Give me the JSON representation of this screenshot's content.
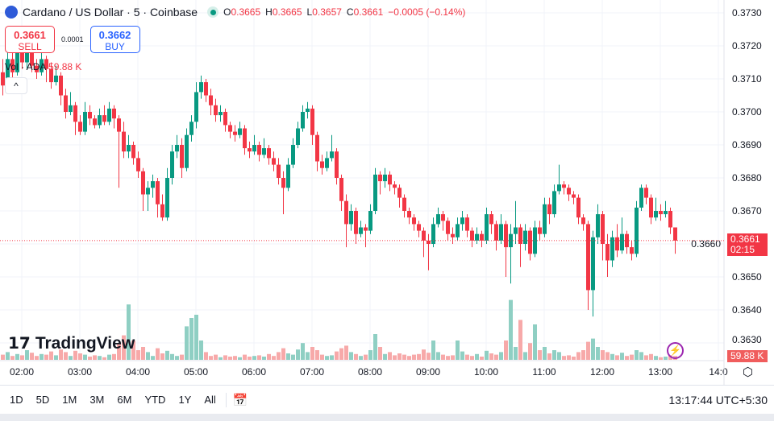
{
  "header": {
    "title": "Cardano / US Dollar · 5 · Coinbase",
    "o_label": "O",
    "o": "0.3665",
    "h_label": "H",
    "h": "0.3665",
    "l_label": "L",
    "l": "0.3657",
    "c_label": "C",
    "c": "0.3661",
    "change": "−0.0005 (−0.14%)"
  },
  "trade": {
    "sell_price": "0.3661",
    "sell_label": "SELL",
    "spread": "0.0001",
    "buy_price": "0.3662",
    "buy_label": "BUY"
  },
  "volume": {
    "label": "Vol · ADA",
    "value": "59.88 K"
  },
  "brand": "TradingView",
  "price_tag": {
    "price": "0.3661",
    "countdown": "02:15"
  },
  "volume_tag": "59.88 K",
  "colors": {
    "up": "#089981",
    "down": "#f23645",
    "accent": "#2962ff"
  },
  "ranges": [
    "1D",
    "5D",
    "1M",
    "3M",
    "6M",
    "YTD",
    "1Y",
    "All"
  ],
  "clock": "13:17:44 UTC+5:30",
  "chart_data": {
    "type": "candlestick",
    "interval": "5",
    "y_ticks": [
      "0.3730",
      "0.3720",
      "0.3710",
      "0.3700",
      "0.3690",
      "0.3680",
      "0.3670",
      "0.3660",
      "0.3650",
      "0.3640",
      "0.3630"
    ],
    "ylim": [
      0.363,
      0.373
    ],
    "x_ticks": [
      "02:00",
      "03:00",
      "04:00",
      "05:00",
      "06:00",
      "07:00",
      "08:00",
      "09:00",
      "10:00",
      "11:00",
      "12:00",
      "13:00",
      "14:0"
    ],
    "current_price": 0.3661,
    "candles": [
      [
        0.3712,
        0.3716,
        0.3705,
        0.3708,
        80
      ],
      [
        0.3708,
        0.3719,
        0.3706,
        0.3716,
        120
      ],
      [
        0.3716,
        0.3718,
        0.371,
        0.3712,
        60
      ],
      [
        0.3712,
        0.3721,
        0.3711,
        0.3718,
        90
      ],
      [
        0.3718,
        0.372,
        0.3713,
        0.3715,
        70
      ],
      [
        0.3715,
        0.3722,
        0.3713,
        0.3719,
        150
      ],
      [
        0.3719,
        0.372,
        0.3712,
        0.3714,
        110
      ],
      [
        0.3714,
        0.3716,
        0.371,
        0.3712,
        60
      ],
      [
        0.3712,
        0.3718,
        0.3711,
        0.3716,
        90
      ],
      [
        0.3716,
        0.3717,
        0.3709,
        0.3713,
        80
      ],
      [
        0.3713,
        0.3715,
        0.3707,
        0.3709,
        130
      ],
      [
        0.3709,
        0.3714,
        0.3708,
        0.3711,
        70
      ],
      [
        0.3711,
        0.3712,
        0.3702,
        0.3705,
        160
      ],
      [
        0.3705,
        0.3707,
        0.3698,
        0.37,
        120
      ],
      [
        0.37,
        0.3706,
        0.3699,
        0.3702,
        60
      ],
      [
        0.3702,
        0.3703,
        0.3693,
        0.3697,
        140
      ],
      [
        0.3697,
        0.3699,
        0.3693,
        0.3694,
        100
      ],
      [
        0.3694,
        0.3703,
        0.3693,
        0.37,
        80
      ],
      [
        0.37,
        0.3702,
        0.3696,
        0.3698,
        50
      ],
      [
        0.3698,
        0.3699,
        0.3695,
        0.3696,
        70
      ],
      [
        0.3696,
        0.3701,
        0.3695,
        0.3699,
        60
      ],
      [
        0.3699,
        0.3702,
        0.3696,
        0.3697,
        40
      ],
      [
        0.3697,
        0.3703,
        0.3696,
        0.3701,
        80
      ],
      [
        0.3701,
        0.3702,
        0.3695,
        0.3698,
        90
      ],
      [
        0.3698,
        0.3699,
        0.3677,
        0.3694,
        260
      ],
      [
        0.3694,
        0.3697,
        0.3686,
        0.3688,
        380
      ],
      [
        0.3688,
        0.3693,
        0.3686,
        0.369,
        860
      ],
      [
        0.369,
        0.3691,
        0.3684,
        0.3686,
        300
      ],
      [
        0.3686,
        0.3688,
        0.368,
        0.3682,
        150
      ],
      [
        0.3682,
        0.3683,
        0.367,
        0.3675,
        200
      ],
      [
        0.3675,
        0.3679,
        0.367,
        0.3677,
        120
      ],
      [
        0.3677,
        0.3681,
        0.3674,
        0.3679,
        60
      ],
      [
        0.3679,
        0.368,
        0.3668,
        0.3672,
        180
      ],
      [
        0.3672,
        0.3675,
        0.3667,
        0.3668,
        100
      ],
      [
        0.3668,
        0.3683,
        0.3667,
        0.368,
        140
      ],
      [
        0.368,
        0.369,
        0.3678,
        0.3688,
        90
      ],
      [
        0.3688,
        0.3693,
        0.3686,
        0.369,
        60
      ],
      [
        0.369,
        0.3692,
        0.368,
        0.3683,
        80
      ],
      [
        0.3683,
        0.3695,
        0.3682,
        0.3693,
        520
      ],
      [
        0.3693,
        0.3699,
        0.3691,
        0.3697,
        650
      ],
      [
        0.3697,
        0.3709,
        0.3695,
        0.3706,
        700
      ],
      [
        0.3706,
        0.3711,
        0.3704,
        0.3709,
        300
      ],
      [
        0.3709,
        0.371,
        0.3703,
        0.3705,
        120
      ],
      [
        0.3705,
        0.3707,
        0.3699,
        0.3702,
        60
      ],
      [
        0.3702,
        0.3704,
        0.3697,
        0.3699,
        80
      ],
      [
        0.3699,
        0.3702,
        0.3697,
        0.37,
        40
      ],
      [
        0.37,
        0.3701,
        0.3694,
        0.3696,
        70
      ],
      [
        0.3696,
        0.3697,
        0.3692,
        0.3694,
        50
      ],
      [
        0.3694,
        0.3696,
        0.3691,
        0.3693,
        60
      ],
      [
        0.3693,
        0.3697,
        0.3692,
        0.3695,
        40
      ],
      [
        0.3695,
        0.3696,
        0.3687,
        0.3689,
        80
      ],
      [
        0.3689,
        0.3691,
        0.3686,
        0.3688,
        50
      ],
      [
        0.3688,
        0.3693,
        0.3687,
        0.369,
        60
      ],
      [
        0.369,
        0.3691,
        0.3685,
        0.3687,
        70
      ],
      [
        0.3687,
        0.3692,
        0.3686,
        0.3689,
        50
      ],
      [
        0.3689,
        0.369,
        0.3684,
        0.3686,
        90
      ],
      [
        0.3686,
        0.3688,
        0.3682,
        0.3684,
        60
      ],
      [
        0.3684,
        0.3686,
        0.3678,
        0.368,
        120
      ],
      [
        0.368,
        0.3682,
        0.3669,
        0.3677,
        180
      ],
      [
        0.3677,
        0.3686,
        0.3676,
        0.3684,
        100
      ],
      [
        0.3684,
        0.3692,
        0.3683,
        0.369,
        80
      ],
      [
        0.369,
        0.3697,
        0.3689,
        0.3695,
        160
      ],
      [
        0.3695,
        0.3702,
        0.3694,
        0.37,
        260
      ],
      [
        0.37,
        0.3703,
        0.3698,
        0.3701,
        120
      ],
      [
        0.3701,
        0.3702,
        0.369,
        0.3693,
        200
      ],
      [
        0.3693,
        0.3694,
        0.3682,
        0.3685,
        150
      ],
      [
        0.3685,
        0.3687,
        0.3681,
        0.3683,
        80
      ],
      [
        0.3683,
        0.3688,
        0.3682,
        0.3686,
        60
      ],
      [
        0.3686,
        0.3693,
        0.3685,
        0.3688,
        70
      ],
      [
        0.3688,
        0.3689,
        0.3678,
        0.368,
        130
      ],
      [
        0.368,
        0.3681,
        0.367,
        0.3673,
        180
      ],
      [
        0.3673,
        0.3675,
        0.3659,
        0.3666,
        220
      ],
      [
        0.3666,
        0.3672,
        0.3664,
        0.367,
        120
      ],
      [
        0.367,
        0.3671,
        0.366,
        0.3663,
        90
      ],
      [
        0.3663,
        0.3667,
        0.3662,
        0.3665,
        60
      ],
      [
        0.3665,
        0.3666,
        0.3659,
        0.3664,
        80
      ],
      [
        0.3664,
        0.3672,
        0.3663,
        0.367,
        150
      ],
      [
        0.367,
        0.3683,
        0.3669,
        0.3681,
        400
      ],
      [
        0.3681,
        0.3682,
        0.3675,
        0.3679,
        200
      ],
      [
        0.3679,
        0.3683,
        0.3677,
        0.3681,
        90
      ],
      [
        0.3681,
        0.3682,
        0.3676,
        0.3678,
        120
      ],
      [
        0.3678,
        0.3679,
        0.3675,
        0.3677,
        70
      ],
      [
        0.3677,
        0.3678,
        0.3671,
        0.3674,
        100
      ],
      [
        0.3674,
        0.3675,
        0.3668,
        0.367,
        80
      ],
      [
        0.367,
        0.3671,
        0.3666,
        0.3668,
        60
      ],
      [
        0.3668,
        0.3669,
        0.3664,
        0.3666,
        80
      ],
      [
        0.3666,
        0.3667,
        0.3662,
        0.3664,
        90
      ],
      [
        0.3664,
        0.3665,
        0.3656,
        0.3661,
        160
      ],
      [
        0.3661,
        0.3663,
        0.3652,
        0.366,
        110
      ],
      [
        0.366,
        0.3668,
        0.3659,
        0.3666,
        300
      ],
      [
        0.3666,
        0.3671,
        0.3665,
        0.3669,
        120
      ],
      [
        0.3669,
        0.367,
        0.3664,
        0.3667,
        80
      ],
      [
        0.3667,
        0.3668,
        0.3661,
        0.3663,
        60
      ],
      [
        0.3663,
        0.3665,
        0.366,
        0.3662,
        70
      ],
      [
        0.3662,
        0.3668,
        0.3661,
        0.3666,
        300
      ],
      [
        0.3666,
        0.367,
        0.3664,
        0.3668,
        130
      ],
      [
        0.3668,
        0.3669,
        0.3662,
        0.3664,
        80
      ],
      [
        0.3664,
        0.3665,
        0.3659,
        0.3661,
        60
      ],
      [
        0.3661,
        0.3665,
        0.366,
        0.3663,
        90
      ],
      [
        0.3663,
        0.3664,
        0.3659,
        0.3661,
        50
      ],
      [
        0.3661,
        0.3671,
        0.366,
        0.3669,
        140
      ],
      [
        0.3669,
        0.367,
        0.3663,
        0.3666,
        100
      ],
      [
        0.3666,
        0.3667,
        0.3658,
        0.3661,
        80
      ],
      [
        0.3661,
        0.3669,
        0.366,
        0.3666,
        120
      ],
      [
        0.3666,
        0.3667,
        0.365,
        0.3659,
        300
      ],
      [
        0.3659,
        0.3666,
        0.3648,
        0.3663,
        930
      ],
      [
        0.3663,
        0.3673,
        0.366,
        0.3665,
        200
      ],
      [
        0.3665,
        0.3666,
        0.3653,
        0.366,
        620
      ],
      [
        0.366,
        0.3666,
        0.3658,
        0.3664,
        120
      ],
      [
        0.3664,
        0.3665,
        0.3655,
        0.3657,
        260
      ],
      [
        0.3657,
        0.3667,
        0.3656,
        0.3665,
        550
      ],
      [
        0.3665,
        0.3667,
        0.3661,
        0.3663,
        150
      ],
      [
        0.3663,
        0.3674,
        0.3662,
        0.3672,
        200
      ],
      [
        0.3672,
        0.3674,
        0.3666,
        0.3669,
        100
      ],
      [
        0.3669,
        0.3678,
        0.3668,
        0.3676,
        150
      ],
      [
        0.3676,
        0.3684,
        0.3675,
        0.3678,
        120
      ],
      [
        0.3678,
        0.3679,
        0.3675,
        0.3677,
        60
      ],
      [
        0.3677,
        0.3678,
        0.3673,
        0.3675,
        70
      ],
      [
        0.3675,
        0.3676,
        0.3672,
        0.3674,
        50
      ],
      [
        0.3674,
        0.3675,
        0.3666,
        0.3668,
        120
      ],
      [
        0.3668,
        0.3669,
        0.3664,
        0.3666,
        150
      ],
      [
        0.3666,
        0.3667,
        0.364,
        0.3646,
        280
      ],
      [
        0.3646,
        0.3664,
        0.3638,
        0.3662,
        330
      ],
      [
        0.3662,
        0.3672,
        0.366,
        0.3669,
        200
      ],
      [
        0.3669,
        0.367,
        0.3655,
        0.366,
        150
      ],
      [
        0.366,
        0.3663,
        0.365,
        0.3655,
        120
      ],
      [
        0.3655,
        0.3664,
        0.3653,
        0.3662,
        90
      ],
      [
        0.3662,
        0.3666,
        0.3656,
        0.3658,
        70
      ],
      [
        0.3658,
        0.3668,
        0.3657,
        0.3663,
        110
      ],
      [
        0.3663,
        0.3664,
        0.3657,
        0.3659,
        60
      ],
      [
        0.3659,
        0.3661,
        0.3655,
        0.3657,
        80
      ],
      [
        0.3657,
        0.3673,
        0.3656,
        0.3671,
        150
      ],
      [
        0.3671,
        0.3678,
        0.367,
        0.3677,
        120
      ],
      [
        0.3677,
        0.3678,
        0.3672,
        0.3674,
        70
      ],
      [
        0.3674,
        0.3675,
        0.3666,
        0.3668,
        90
      ],
      [
        0.3668,
        0.3674,
        0.3667,
        0.367,
        60
      ],
      [
        0.367,
        0.3672,
        0.3667,
        0.3669,
        40
      ],
      [
        0.3669,
        0.3673,
        0.3668,
        0.367,
        50
      ],
      [
        0.367,
        0.3671,
        0.3663,
        0.3665,
        70
      ],
      [
        0.3665,
        0.3665,
        0.3657,
        0.3661,
        60
      ]
    ]
  }
}
